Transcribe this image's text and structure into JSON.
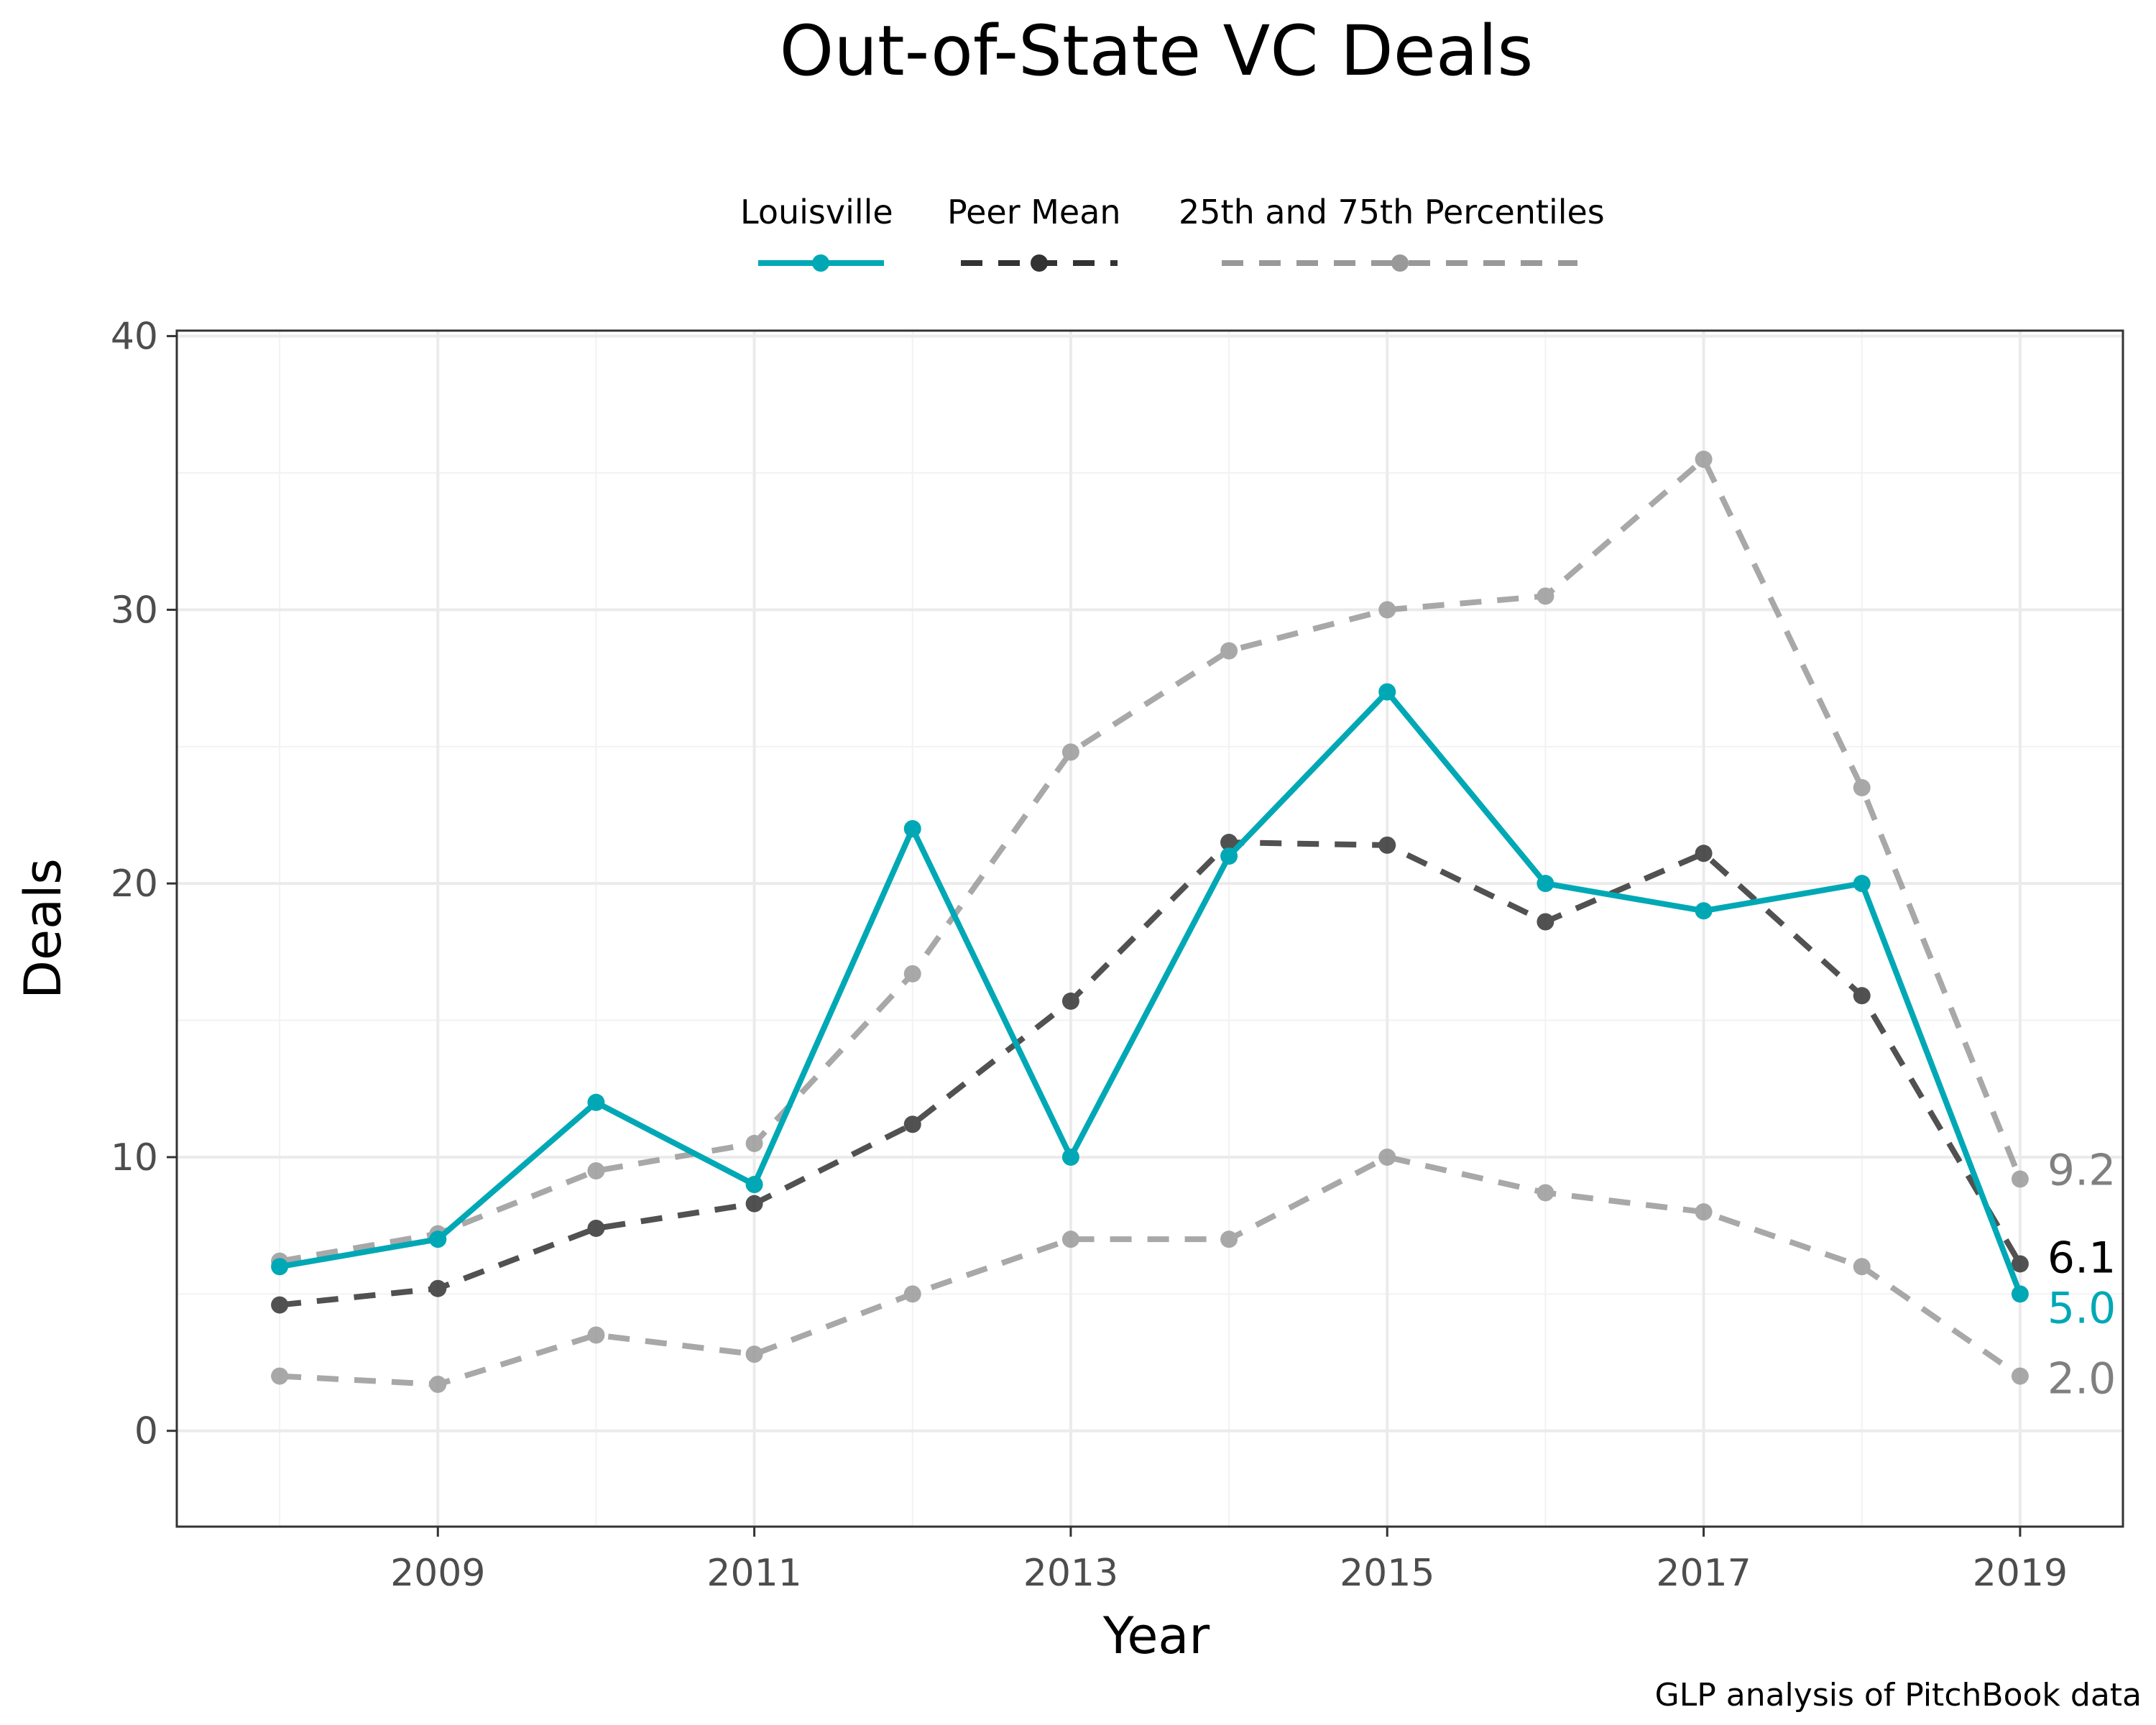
{
  "chart_data": {
    "type": "line",
    "title": "Out-of-State VC Deals",
    "xlabel": "Year",
    "ylabel": "Deals",
    "caption": "GLP analysis of PitchBook data",
    "x": [
      2008,
      2009,
      2010,
      2011,
      2012,
      2013,
      2014,
      2015,
      2016,
      2017,
      2018,
      2019
    ],
    "xticks": [
      "2009",
      "2011",
      "2013",
      "2015",
      "2017",
      "2019"
    ],
    "xlim": [
      2007.35,
      2019.65
    ],
    "yticks": [
      "0",
      "10",
      "20",
      "30",
      "40"
    ],
    "ylim": [
      -3.5,
      40.2
    ],
    "grid": true,
    "legend_position": "top",
    "legend": [
      "Louisville",
      "Peer Mean",
      "25th and 75th Percentiles"
    ],
    "series": [
      {
        "name": "Louisville",
        "color": "#00a8b5",
        "style": "solid",
        "values": [
          6,
          7,
          12,
          9,
          22,
          10,
          21,
          27,
          20,
          19,
          20,
          5
        ],
        "end_label": "5.0"
      },
      {
        "name": "Peer Mean",
        "color": "#333333",
        "style": "dashed",
        "values": [
          4.6,
          5.2,
          7.4,
          8.3,
          11.2,
          15.7,
          21.5,
          21.4,
          18.6,
          21.1,
          15.9,
          6.1
        ],
        "end_label": "6.1"
      },
      {
        "name": "75th Percentile",
        "color": "#999999",
        "style": "dashed",
        "values": [
          6.2,
          7.2,
          9.5,
          10.5,
          16.7,
          24.8,
          28.5,
          30,
          30.5,
          35.5,
          23.5,
          9.2
        ],
        "end_label": "9.2"
      },
      {
        "name": "25th Percentile",
        "color": "#999999",
        "style": "dashed",
        "values": [
          2,
          1.7,
          3.5,
          2.8,
          5,
          7,
          7,
          10,
          8.7,
          8,
          6,
          2
        ],
        "end_label": "2.0"
      }
    ]
  }
}
